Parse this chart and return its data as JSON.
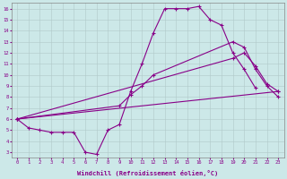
{
  "xlabel": "Windchill (Refroidissement éolien,°C)",
  "bg_color": "#cce8e8",
  "line_color": "#880088",
  "xlim": [
    -0.5,
    23.5
  ],
  "ylim": [
    2.5,
    16.5
  ],
  "xticks": [
    0,
    1,
    2,
    3,
    4,
    5,
    6,
    7,
    8,
    9,
    10,
    11,
    12,
    13,
    14,
    15,
    16,
    17,
    18,
    19,
    20,
    21,
    22,
    23
  ],
  "yticks": [
    3,
    4,
    5,
    6,
    7,
    8,
    9,
    10,
    11,
    12,
    13,
    14,
    15,
    16
  ],
  "curve1_x": [
    0,
    1,
    2,
    3,
    4,
    5,
    6,
    7,
    8,
    9,
    10,
    11,
    12,
    13,
    14,
    15,
    16,
    17,
    18,
    19,
    20,
    21
  ],
  "curve1_y": [
    6.0,
    5.2,
    5.0,
    4.8,
    4.8,
    4.8,
    3.0,
    2.8,
    5.0,
    5.5,
    8.5,
    11.0,
    13.8,
    16.0,
    16.0,
    16.0,
    16.2,
    15.0,
    14.5,
    12.0,
    10.5,
    8.8
  ],
  "curve2_x": [
    0,
    23
  ],
  "curve2_y": [
    6.0,
    8.5
  ],
  "curve3_x": [
    0,
    19,
    20,
    21,
    22,
    23
  ],
  "curve3_y": [
    6.0,
    11.5,
    12.0,
    10.8,
    9.2,
    8.5
  ],
  "curve4_x": [
    0,
    9,
    10,
    11,
    12,
    19,
    20,
    21,
    22,
    23
  ],
  "curve4_y": [
    6.0,
    7.2,
    8.2,
    9.0,
    10.0,
    13.0,
    12.5,
    10.5,
    9.0,
    8.0
  ]
}
